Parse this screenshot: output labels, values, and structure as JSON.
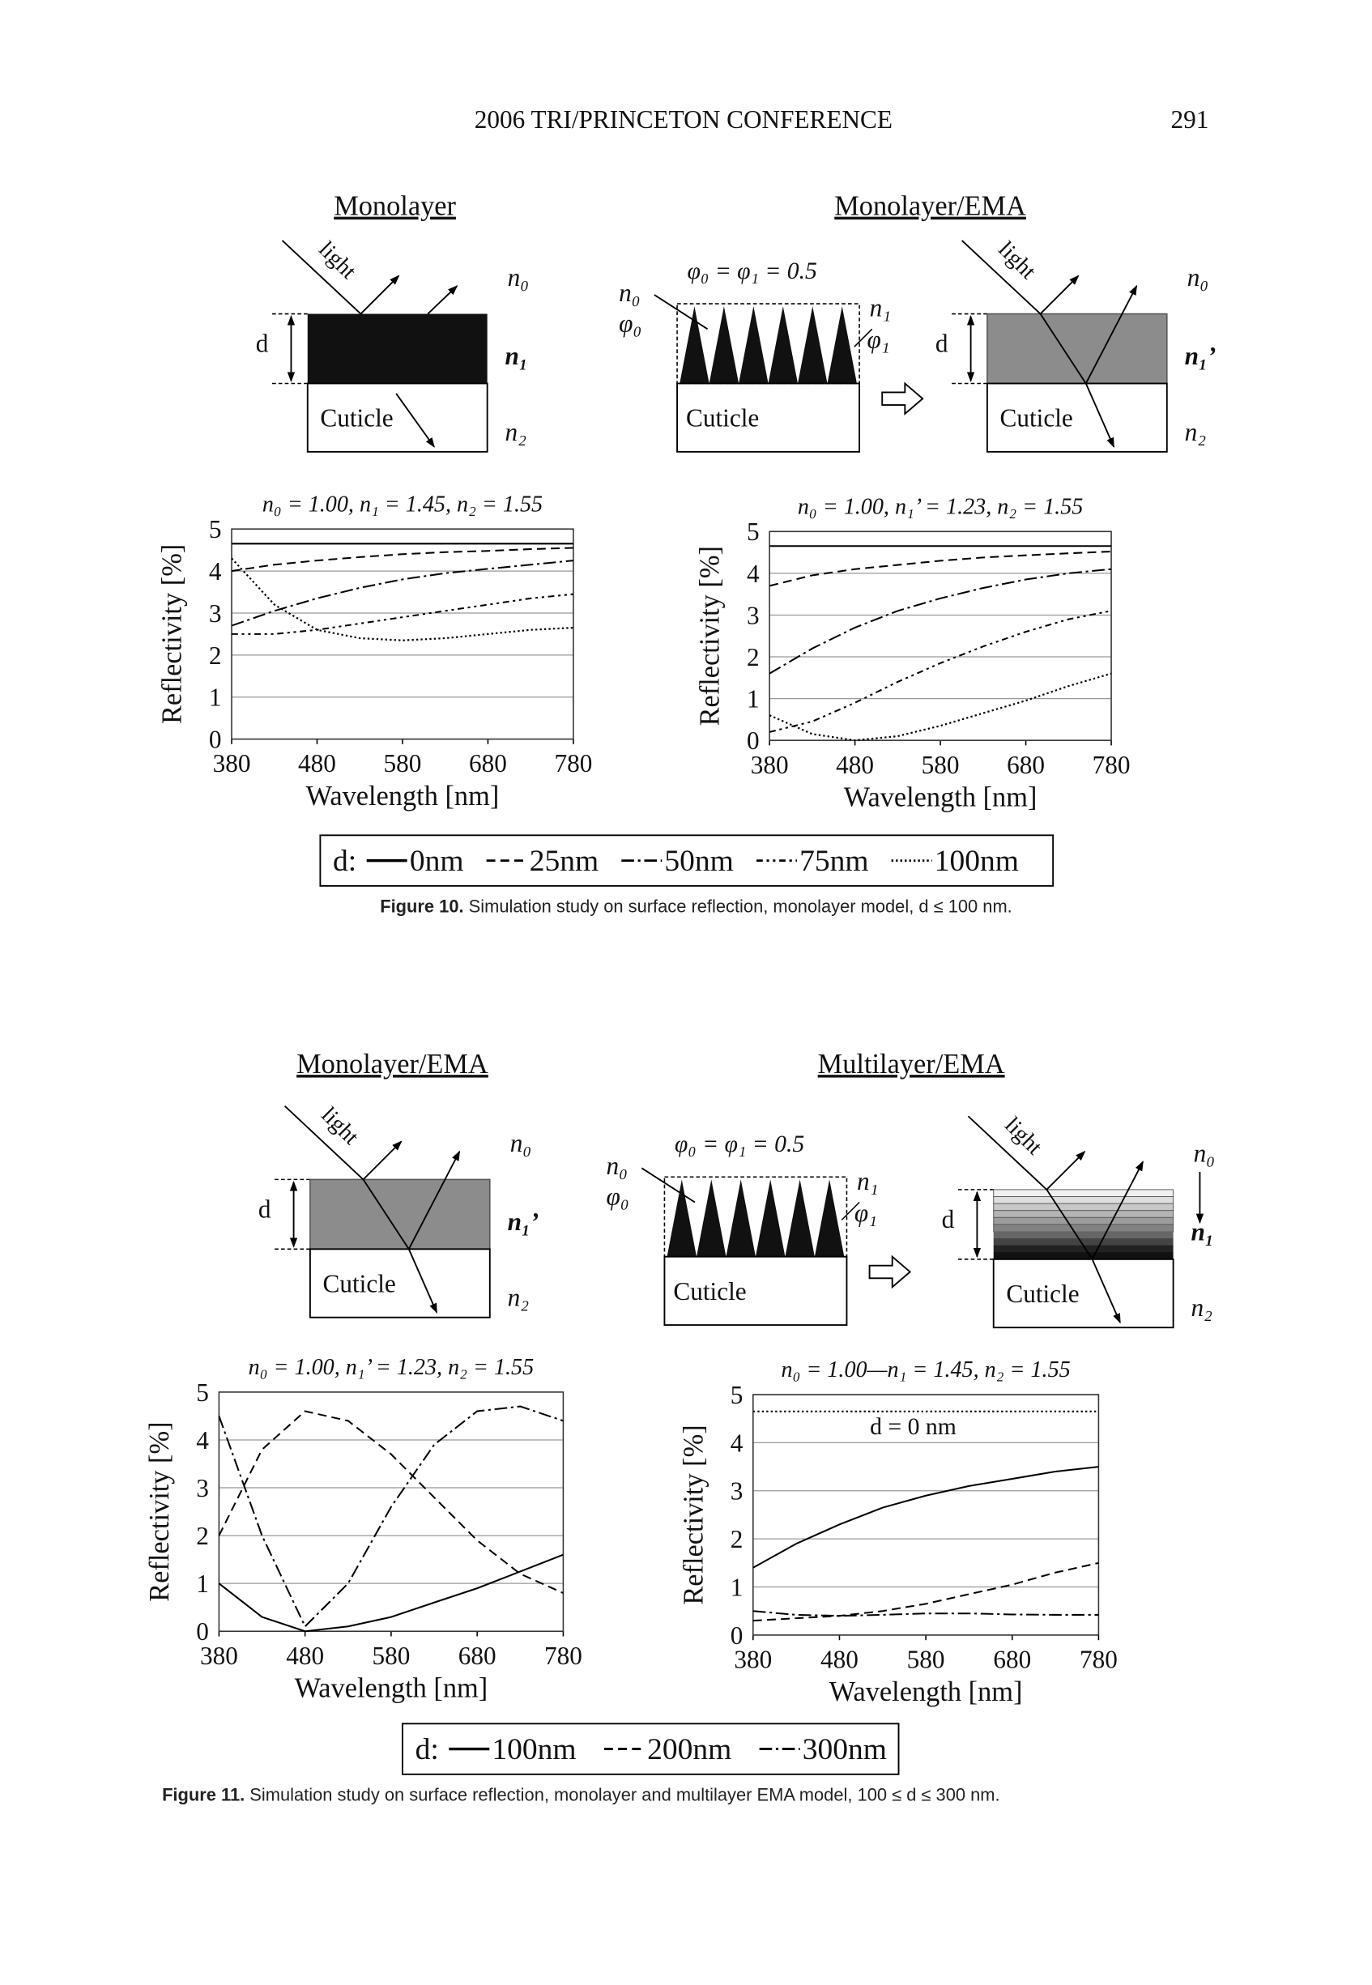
{
  "header": {
    "running_title": "2006 TRI/PRINCETON CONFERENCE",
    "page_number": "291"
  },
  "figures": [
    {
      "panels": [
        {
          "title": "Monolayer",
          "light": "light",
          "n0": "n₀",
          "n1": "n₁",
          "n2": "n₂",
          "d": "d",
          "substrate": "Cuticle"
        },
        {
          "title": "Monolayer/EMA",
          "moth_eye": {
            "formula": "φ₀ = φ₁ = 0.5",
            "n0": "n₀",
            "phi0": "φ₀",
            "n1": "n₁",
            "phi1": "φ₁",
            "substrate": "Cuticle"
          },
          "light": "light",
          "n0": "n₀",
          "n1": "n₁’",
          "n2": "n₂",
          "d": "d",
          "substrate": "Cuticle"
        }
      ],
      "legend_title": "d:",
      "caption_label": "Figure 10.",
      "caption": "Simulation study on surface reflection, monolayer model, d ≤ 100 nm."
    },
    {
      "panels": [
        {
          "title": "Monolayer/EMA",
          "light": "light",
          "n0": "n₀",
          "n1": "n₁’",
          "n2": "n₂",
          "d": "d",
          "substrate": "Cuticle"
        },
        {
          "title": "Multilayer/EMA",
          "moth_eye": {
            "formula": "φ₀ = φ₁ = 0.5",
            "n0": "n₀",
            "phi0": "φ₀",
            "n1": "n₁",
            "phi1": "φ₁",
            "substrate": "Cuticle"
          },
          "light": "light",
          "n0": "n₀",
          "n1": "n₁",
          "n2": "n₂",
          "d": "d",
          "substrate": "Cuticle"
        }
      ],
      "legend_title": "d:",
      "caption_label": "Figure 11.",
      "caption": "Simulation study on surface reflection, monolayer and multilayer EMA model, 100 ≤ d ≤ 300 nm."
    }
  ],
  "chart_data": [
    {
      "type": "line",
      "title": "n₀ = 1.00, n₁ = 1.45, n₂ = 1.55",
      "x_label": "Wavelength [nm]",
      "y_label": "Reflectivity [%]",
      "x": [
        380,
        430,
        480,
        530,
        580,
        630,
        680,
        730,
        780
      ],
      "xlim": [
        380,
        780
      ],
      "xticks": [
        380,
        480,
        580,
        680,
        780
      ],
      "ylim": [
        0,
        5
      ],
      "yticks": [
        0,
        1,
        2,
        3,
        4,
        5
      ],
      "grid": true,
      "series": [
        {
          "name": "0nm",
          "color": "#000000",
          "style": "solid",
          "values": [
            4.65,
            4.65,
            4.65,
            4.65,
            4.65,
            4.65,
            4.65,
            4.65,
            4.65
          ]
        },
        {
          "name": "25nm",
          "color": "#000000",
          "style": "dashed",
          "values": [
            4.0,
            4.15,
            4.25,
            4.33,
            4.4,
            4.45,
            4.48,
            4.52,
            4.55
          ]
        },
        {
          "name": "50nm",
          "color": "#000000",
          "style": "dashdot",
          "values": [
            2.7,
            3.05,
            3.35,
            3.6,
            3.8,
            3.95,
            4.05,
            4.15,
            4.25
          ]
        },
        {
          "name": "75nm",
          "color": "#000000",
          "style": "dashdotdot",
          "values": [
            2.5,
            2.5,
            2.6,
            2.75,
            2.9,
            3.05,
            3.2,
            3.35,
            3.45
          ]
        },
        {
          "name": "100nm",
          "color": "#000000",
          "style": "dotted",
          "values": [
            4.3,
            3.2,
            2.6,
            2.4,
            2.35,
            2.4,
            2.5,
            2.6,
            2.65
          ]
        }
      ]
    },
    {
      "type": "line",
      "title": "n₀ = 1.00, n₁’ = 1.23, n₂ = 1.55",
      "x_label": "Wavelength [nm]",
      "y_label": "Reflectivity [%]",
      "x": [
        380,
        430,
        480,
        530,
        580,
        630,
        680,
        730,
        780
      ],
      "xlim": [
        380,
        780
      ],
      "xticks": [
        380,
        480,
        580,
        680,
        780
      ],
      "ylim": [
        0,
        5
      ],
      "yticks": [
        0,
        1,
        2,
        3,
        4,
        5
      ],
      "grid": true,
      "series": [
        {
          "color": "#000000",
          "style": "solid",
          "values": [
            4.65,
            4.65,
            4.65,
            4.65,
            4.65,
            4.65,
            4.65,
            4.65,
            4.65
          ]
        },
        {
          "color": "#000000",
          "style": "dashed",
          "values": [
            3.7,
            3.95,
            4.1,
            4.2,
            4.3,
            4.38,
            4.43,
            4.48,
            4.52
          ]
        },
        {
          "color": "#000000",
          "style": "dashdot",
          "values": [
            1.6,
            2.2,
            2.7,
            3.1,
            3.4,
            3.65,
            3.85,
            4.0,
            4.1
          ]
        },
        {
          "color": "#000000",
          "style": "dashdotdot",
          "values": [
            0.2,
            0.45,
            0.9,
            1.4,
            1.85,
            2.25,
            2.6,
            2.9,
            3.1
          ]
        },
        {
          "color": "#000000",
          "style": "dotted",
          "values": [
            0.6,
            0.15,
            0.0,
            0.1,
            0.35,
            0.65,
            0.95,
            1.3,
            1.6
          ]
        }
      ]
    },
    {
      "type": "line",
      "title": "n₀ = 1.00, n₁’ = 1.23, n₂ = 1.55",
      "x_label": "Wavelength [nm]",
      "y_label": "Reflectivity [%]",
      "x": [
        380,
        430,
        480,
        530,
        580,
        630,
        680,
        730,
        780
      ],
      "xlim": [
        380,
        780
      ],
      "xticks": [
        380,
        480,
        580,
        680,
        780
      ],
      "ylim": [
        0,
        5
      ],
      "yticks": [
        0,
        1,
        2,
        3,
        4,
        5
      ],
      "grid": true,
      "series": [
        {
          "name": "100nm",
          "color": "#000000",
          "style": "solid",
          "values": [
            1.0,
            0.3,
            0.0,
            0.1,
            0.3,
            0.6,
            0.9,
            1.25,
            1.6
          ]
        },
        {
          "name": "200nm",
          "color": "#000000",
          "style": "dashed",
          "values": [
            2.0,
            3.8,
            4.6,
            4.4,
            3.7,
            2.8,
            1.9,
            1.2,
            0.8
          ]
        },
        {
          "name": "300nm",
          "color": "#000000",
          "style": "dashdot",
          "values": [
            4.5,
            2.0,
            0.1,
            1.0,
            2.6,
            3.9,
            4.6,
            4.7,
            4.4
          ]
        }
      ]
    },
    {
      "type": "line",
      "title": "n₀ = 1.00—n₁ = 1.45, n₂ = 1.55",
      "x_label": "Wavelength [nm]",
      "y_label": "Reflectivity [%]",
      "x": [
        380,
        430,
        480,
        530,
        580,
        630,
        680,
        730,
        780
      ],
      "xlim": [
        380,
        780
      ],
      "xticks": [
        380,
        480,
        580,
        680,
        780
      ],
      "ylim": [
        0,
        5
      ],
      "yticks": [
        0,
        1,
        2,
        3,
        4,
        5
      ],
      "grid": true,
      "series": [
        {
          "name": "d = 0 nm",
          "color": "#000000",
          "style": "dotted",
          "values": [
            4.65,
            4.65,
            4.65,
            4.65,
            4.65,
            4.65,
            4.65,
            4.65,
            4.65
          ]
        },
        {
          "color": "#000000",
          "style": "solid",
          "values": [
            1.4,
            1.9,
            2.3,
            2.65,
            2.9,
            3.1,
            3.25,
            3.4,
            3.5
          ]
        },
        {
          "color": "#000000",
          "style": "dashed",
          "values": [
            0.3,
            0.35,
            0.4,
            0.5,
            0.65,
            0.85,
            1.05,
            1.3,
            1.5
          ]
        },
        {
          "color": "#000000",
          "style": "dashdot",
          "values": [
            0.5,
            0.42,
            0.4,
            0.42,
            0.45,
            0.45,
            0.43,
            0.42,
            0.42
          ]
        }
      ]
    }
  ]
}
